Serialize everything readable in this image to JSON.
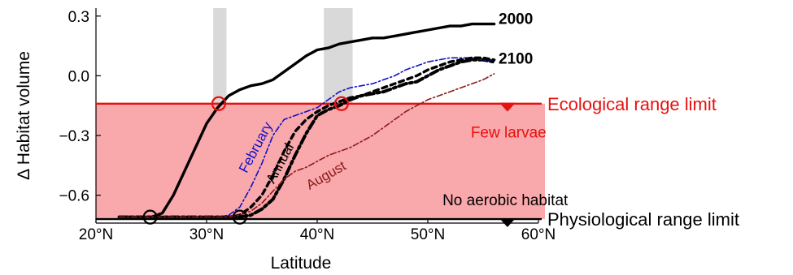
{
  "chart_data": {
    "type": "line",
    "xlabel": "Latitude",
    "ylabel": "Δ Habitat volume",
    "xlim": [
      20,
      60
    ],
    "ylim": [
      -0.74,
      0.34
    ],
    "x_ticks": [
      {
        "value": 20,
        "label": "20°N"
      },
      {
        "value": 30,
        "label": "30°N"
      },
      {
        "value": 40,
        "label": "40°N"
      },
      {
        "value": 50,
        "label": "50°N"
      },
      {
        "value": 60,
        "label": "60°N"
      }
    ],
    "y_ticks": [
      {
        "value": 0.3,
        "label": "0.3"
      },
      {
        "value": 0.0,
        "label": "0.0"
      },
      {
        "value": -0.3,
        "label": "−0.3"
      },
      {
        "value": -0.6,
        "label": "−0.6"
      }
    ],
    "grid": false,
    "shaded_region": {
      "from_y": -0.72,
      "to_y": -0.14,
      "color": "#f9a8ab"
    },
    "highlight_bands": [
      {
        "x_from": 30.6,
        "x_to": 31.8
      },
      {
        "x_from": 40.6,
        "x_to": 43.2
      }
    ],
    "series": [
      {
        "name": "2000",
        "color": "#000000",
        "style": "solid",
        "x": [
          22.1,
          23,
          24,
          25,
          26,
          27,
          28,
          29,
          30,
          31,
          32,
          33,
          34,
          35,
          36,
          37,
          38,
          39,
          40,
          41,
          42,
          43,
          44,
          45,
          46,
          47,
          48,
          49,
          50,
          51,
          52,
          53,
          54,
          55,
          56
        ],
        "y": [
          -0.71,
          -0.71,
          -0.71,
          -0.71,
          -0.69,
          -0.6,
          -0.48,
          -0.36,
          -0.24,
          -0.16,
          -0.1,
          -0.07,
          -0.05,
          -0.04,
          -0.02,
          0.02,
          0.06,
          0.1,
          0.13,
          0.14,
          0.16,
          0.17,
          0.18,
          0.19,
          0.19,
          0.2,
          0.21,
          0.22,
          0.23,
          0.24,
          0.25,
          0.25,
          0.26,
          0.26,
          0.26
        ]
      },
      {
        "name": "2100",
        "color": "#000000",
        "style": "dash-dot",
        "x": [
          22.1,
          25,
          30,
          32,
          33,
          34,
          35,
          36,
          37,
          38,
          39,
          40,
          41,
          42,
          43,
          44,
          45,
          46,
          47,
          48,
          49,
          50,
          51,
          52,
          53,
          54,
          55,
          56
        ],
        "y": [
          -0.71,
          -0.71,
          -0.71,
          -0.71,
          -0.71,
          -0.7,
          -0.67,
          -0.62,
          -0.52,
          -0.4,
          -0.29,
          -0.2,
          -0.17,
          -0.15,
          -0.12,
          -0.1,
          -0.09,
          -0.08,
          -0.06,
          -0.04,
          -0.03,
          0.0,
          0.03,
          0.05,
          0.07,
          0.08,
          0.08,
          0.07
        ]
      },
      {
        "name": "February",
        "color": "#1010c8",
        "style": "dash-dot",
        "x": [
          22.1,
          25,
          29,
          31,
          32,
          33,
          34,
          35,
          36,
          37,
          38,
          39,
          40,
          41,
          42,
          43,
          44,
          45,
          46,
          47,
          48,
          49,
          50,
          51,
          52,
          53,
          54,
          55,
          56
        ],
        "y": [
          -0.71,
          -0.71,
          -0.71,
          -0.71,
          -0.7,
          -0.66,
          -0.56,
          -0.44,
          -0.3,
          -0.22,
          -0.2,
          -0.18,
          -0.16,
          -0.12,
          -0.08,
          -0.06,
          -0.05,
          -0.04,
          -0.02,
          0.0,
          0.03,
          0.05,
          0.07,
          0.08,
          0.09,
          0.09,
          0.09,
          0.08,
          0.08
        ]
      },
      {
        "name": "Annual",
        "color": "#000000",
        "style": "dash-dot-thin",
        "x": [
          22.1,
          25,
          30,
          31,
          32,
          33,
          34,
          35,
          36,
          37,
          38,
          39,
          40,
          41,
          42,
          43,
          44,
          45,
          46,
          47,
          48,
          49,
          50,
          51,
          52,
          53,
          54,
          55,
          56
        ],
        "y": [
          -0.71,
          -0.71,
          -0.71,
          -0.71,
          -0.71,
          -0.7,
          -0.66,
          -0.6,
          -0.5,
          -0.38,
          -0.28,
          -0.22,
          -0.18,
          -0.15,
          -0.13,
          -0.11,
          -0.1,
          -0.08,
          -0.06,
          -0.04,
          -0.02,
          0.0,
          0.03,
          0.05,
          0.07,
          0.08,
          0.09,
          0.09,
          0.08
        ]
      },
      {
        "name": "August",
        "color": "#8b1a1a",
        "style": "dash-dot",
        "x": [
          22.1,
          25,
          30,
          31,
          32,
          33,
          34,
          35,
          36,
          37,
          38,
          39,
          40,
          41,
          42,
          43,
          44,
          45,
          46,
          47,
          48,
          49,
          50,
          51,
          52,
          53,
          54,
          55,
          56
        ],
        "y": [
          -0.71,
          -0.71,
          -0.71,
          -0.71,
          -0.71,
          -0.7,
          -0.68,
          -0.64,
          -0.58,
          -0.52,
          -0.48,
          -0.46,
          -0.43,
          -0.4,
          -0.38,
          -0.36,
          -0.33,
          -0.3,
          -0.26,
          -0.22,
          -0.18,
          -0.15,
          -0.12,
          -0.1,
          -0.08,
          -0.06,
          -0.04,
          -0.02,
          0.01
        ]
      }
    ],
    "reference_lines": [
      {
        "y": -0.14,
        "label": "Ecological range limit",
        "color": "#e8110f"
      },
      {
        "y": -0.72,
        "label": "Physiological range limit",
        "color": "#000000"
      }
    ],
    "markers": [
      {
        "x": 31.1,
        "y": -0.14,
        "color": "#e8110f"
      },
      {
        "x": 42.2,
        "y": -0.14,
        "color": "#e8110f"
      },
      {
        "x": 24.9,
        "y": -0.71,
        "color": "#000000"
      },
      {
        "x": 33.0,
        "y": -0.71,
        "color": "#000000"
      }
    ],
    "triangles": [
      {
        "x": 57.2,
        "y": -0.16,
        "color": "#e8110f"
      },
      {
        "x": 57.2,
        "y": -0.74,
        "color": "#000000"
      }
    ],
    "annotations": [
      {
        "text": "2000",
        "x": 56.4,
        "y": 0.26,
        "color": "#000000",
        "bold": true,
        "rotate": 0
      },
      {
        "text": "2100",
        "x": 56.4,
        "y": 0.06,
        "color": "#000000",
        "bold": true,
        "rotate": 0
      },
      {
        "text": "February",
        "x": 34.8,
        "y": -0.37,
        "color": "#1010c8",
        "bold": false,
        "rotate": -62
      },
      {
        "text": "Annual",
        "x": 37.0,
        "y": -0.45,
        "color": "#000000",
        "bold": false,
        "rotate": -62
      },
      {
        "text": "August",
        "x": 41.0,
        "y": -0.52,
        "color": "#8b1a1a",
        "bold": false,
        "rotate": -30
      },
      {
        "text": "Few larvae",
        "x": 57.3,
        "y": -0.31,
        "color": "#e8110f",
        "bold": false,
        "rotate": 0
      },
      {
        "text": "No aerobic habitat",
        "x": 57.0,
        "y": -0.65,
        "color": "#000000",
        "bold": false,
        "rotate": 0
      }
    ]
  }
}
